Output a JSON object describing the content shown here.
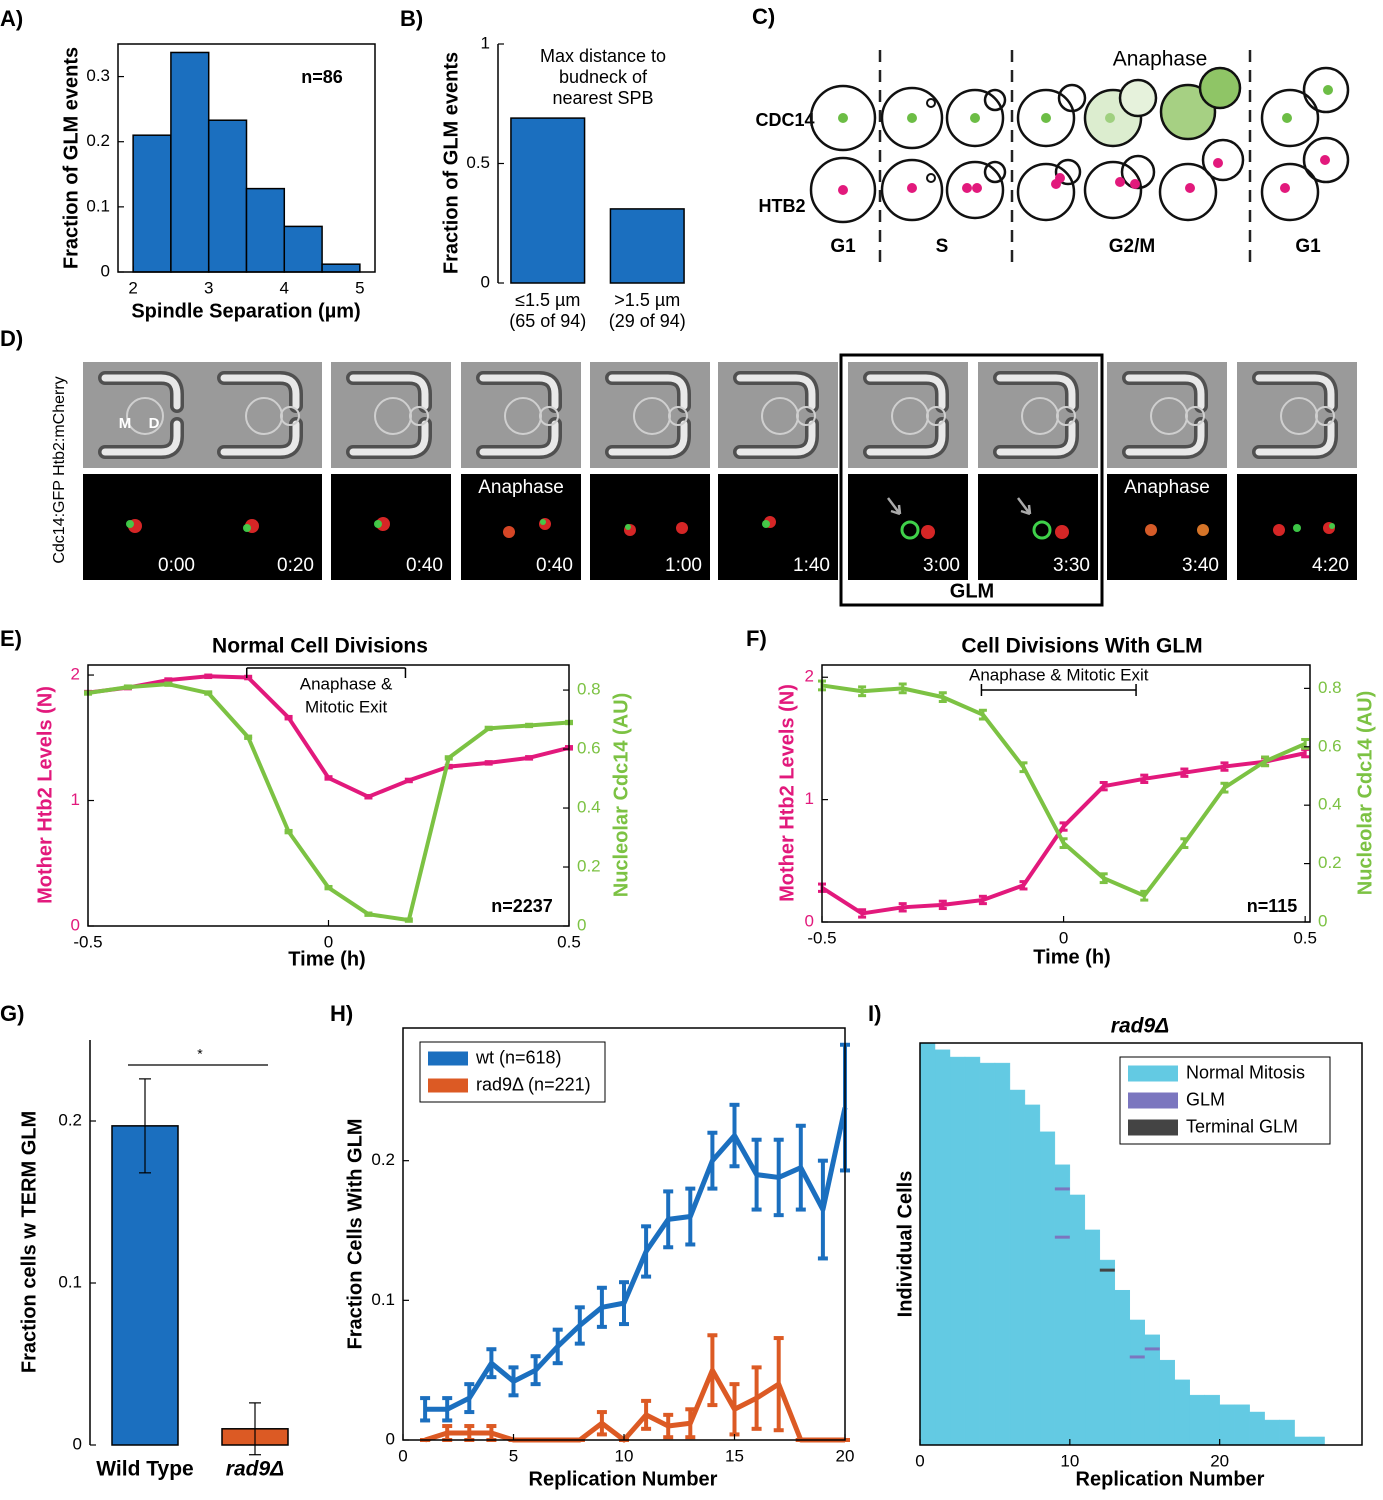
{
  "chart_data": [
    {
      "type": "histogram",
      "panel_label": "A)",
      "xlabel": "Spindle Separation (µm)",
      "ylabel": "Fraction of GLM events",
      "annotation": "n=86",
      "bins": [
        2,
        2.5,
        3,
        3.5,
        4,
        4.5,
        5
      ],
      "values": [
        0.21,
        0.337,
        0.233,
        0.128,
        0.07,
        0.012
      ],
      "color": "#1b6fbf",
      "xlim": [
        1.8,
        5.2
      ],
      "xticks": [
        2,
        3,
        4,
        5
      ],
      "ylim": [
        0,
        0.35
      ],
      "yticks": [
        0,
        0.1,
        0.2,
        0.3
      ]
    },
    {
      "type": "bar",
      "panel_label": "B)",
      "ylabel": "Fraction of GLM events",
      "annotation": [
        "Max distance to",
        "budneck of",
        "nearest SPB"
      ],
      "categories": [
        "≤1.5 µm",
        ">1.5 µm"
      ],
      "category_notes": [
        "(65 of 94)",
        "(29 of 94)"
      ],
      "values": [
        0.69,
        0.31
      ],
      "color": "#1b6fbf",
      "ylim": [
        0,
        1
      ],
      "yticks": [
        0,
        0.5,
        1
      ]
    },
    {
      "type": "line",
      "panel_label": "E)",
      "title": "Normal Cell Divisions",
      "xlabel": "Time (h)",
      "ylabel": "Mother Htb2 Levels (N)",
      "y2label": "Nucleolar Cdc14 (AU)",
      "annotation": "n=2237",
      "bracket": {
        "text": [
          "Anaphase &",
          "Mitotic Exit"
        ],
        "range": [
          -0.17,
          0.16
        ]
      },
      "x": [
        -0.5,
        -0.417,
        -0.333,
        -0.25,
        -0.167,
        -0.083,
        0,
        0.083,
        0.167,
        0.25,
        0.333,
        0.417,
        0.5
      ],
      "series": [
        {
          "color": "#e2197c",
          "values": [
            1.86,
            1.9,
            1.96,
            1.99,
            1.98,
            1.66,
            1.18,
            1.03,
            1.16,
            1.27,
            1.3,
            1.34,
            1.42
          ],
          "errors": [
            0.01,
            0.01,
            0.01,
            0.01,
            0.01,
            0.01,
            0.01,
            0.01,
            0.01,
            0.01,
            0.01,
            0.01,
            0.01
          ]
        },
        {
          "color": "#7cc243",
          "axis": "y2",
          "values": [
            0.79,
            0.81,
            0.82,
            0.79,
            0.64,
            0.32,
            0.13,
            0.04,
            0.02,
            0.57,
            0.67,
            0.68,
            0.69
          ],
          "errors": [
            0.004,
            0.004,
            0.004,
            0.004,
            0.004,
            0.004,
            0.004,
            0.004,
            0.004,
            0.004,
            0.004,
            0.004,
            0.004
          ]
        }
      ],
      "xlim": [
        -0.5,
        0.5
      ],
      "xticks": [
        -0.5,
        0,
        0.5
      ],
      "ylim": [
        0,
        2.08
      ],
      "yticks": [
        0,
        1,
        2
      ],
      "y2lim": [
        0,
        0.885
      ],
      "y2ticks": [
        0,
        0.2,
        0.4,
        0.6,
        0.8
      ]
    },
    {
      "type": "line",
      "panel_label": "F)",
      "title": "Cell Divisions With GLM",
      "xlabel": "Time (h)",
      "ylabel": "Mother Htb2 Levels (N)",
      "y2label": "Nucleolar Cdc14 (AU)",
      "annotation": "n=115",
      "bracket": {
        "text": "Anaphase & Mitotic Exit",
        "range": [
          -0.17,
          0.15
        ]
      },
      "x": [
        -0.5,
        -0.417,
        -0.333,
        -0.25,
        -0.167,
        -0.083,
        0,
        0.083,
        0.167,
        0.25,
        0.333,
        0.417,
        0.5
      ],
      "series": [
        {
          "color": "#e2197c",
          "values": [
            0.28,
            0.07,
            0.12,
            0.14,
            0.18,
            0.3,
            0.78,
            1.11,
            1.17,
            1.22,
            1.27,
            1.31,
            1.38
          ],
          "errors": [
            0.03,
            0.03,
            0.03,
            0.03,
            0.03,
            0.03,
            0.03,
            0.03,
            0.03,
            0.03,
            0.03,
            0.03,
            0.03
          ]
        },
        {
          "color": "#7cc243",
          "axis": "y2",
          "values": [
            0.81,
            0.79,
            0.8,
            0.77,
            0.71,
            0.53,
            0.27,
            0.15,
            0.09,
            0.27,
            0.46,
            0.55,
            0.61
          ],
          "errors": [
            0.015,
            0.015,
            0.015,
            0.015,
            0.015,
            0.015,
            0.015,
            0.015,
            0.015,
            0.015,
            0.015,
            0.015,
            0.015
          ]
        }
      ],
      "xlim": [
        -0.5,
        0.51
      ],
      "xticks": [
        -0.5,
        0,
        0.5
      ],
      "ylim": [
        0,
        2.1
      ],
      "yticks": [
        0,
        1,
        2
      ],
      "y2lim": [
        0,
        0.88
      ],
      "y2ticks": [
        0,
        0.2,
        0.4,
        0.6,
        0.8
      ]
    },
    {
      "type": "bar",
      "panel_label": "G)",
      "ylabel": "Fraction cells w TERM GLM",
      "categories": [
        "Wild Type",
        "rad9Δ"
      ],
      "values": [
        0.197,
        0.01
      ],
      "errors": [
        0.029,
        0.016
      ],
      "colors": [
        "#1b6fbf",
        "#dc5a24"
      ],
      "ylim": [
        0,
        0.25
      ],
      "yticks": [
        0,
        0.1,
        0.2
      ],
      "significance": "*"
    },
    {
      "type": "line",
      "panel_label": "H)",
      "xlabel": "Replication Number",
      "ylabel": "Fraction Cells With GLM",
      "x": [
        1,
        2,
        3,
        4,
        5,
        6,
        7,
        8,
        9,
        10,
        11,
        12,
        13,
        14,
        15,
        16,
        17,
        18,
        19,
        20
      ],
      "series": [
        {
          "name": "wt (n=618)",
          "color": "#1b6fbf",
          "values": [
            0.022,
            0.022,
            0.03,
            0.055,
            0.042,
            0.05,
            0.067,
            0.082,
            0.095,
            0.098,
            0.135,
            0.158,
            0.16,
            0.2,
            0.218,
            0.19,
            0.188,
            0.195,
            0.165,
            0.238
          ],
          "errors": [
            0.008,
            0.008,
            0.01,
            0.01,
            0.01,
            0.01,
            0.012,
            0.013,
            0.014,
            0.015,
            0.018,
            0.02,
            0.02,
            0.02,
            0.022,
            0.025,
            0.027,
            0.03,
            0.035,
            0.045
          ]
        },
        {
          "name": "rad9Δ (n=221)",
          "color": "#dc5a24",
          "values": [
            0,
            0.005,
            0.005,
            0.005,
            0,
            0,
            0,
            0,
            0.012,
            0,
            0.018,
            0.01,
            0.012,
            0.05,
            0.022,
            0.03,
            0.04,
            0,
            0,
            0
          ],
          "errors": [
            0,
            0.005,
            0.005,
            0.005,
            0,
            0,
            0,
            0,
            0.008,
            0,
            0.01,
            0.008,
            0.01,
            0.025,
            0.018,
            0.022,
            0.033,
            0,
            0,
            0
          ]
        }
      ],
      "xlim": [
        0,
        20
      ],
      "xticks": [
        0,
        5,
        10,
        15,
        20
      ],
      "ylim": [
        0,
        0.295
      ],
      "yticks": [
        0,
        0.1,
        0.2
      ],
      "legend": "upper left"
    },
    {
      "type": "histogram",
      "panel_label": "I)",
      "title": "rad9Δ",
      "xlabel": "Replication Number",
      "ylabel": "Individual Cells",
      "name": "Normal Mitosis",
      "bins": [
        0,
        1,
        2,
        3,
        4,
        5,
        6,
        7,
        8,
        9,
        10,
        11,
        12,
        13,
        14,
        15,
        16,
        17,
        18,
        19,
        20,
        21,
        22,
        23,
        24,
        25,
        26,
        27
      ],
      "values": [
        1.0,
        0.983,
        0.965,
        0.965,
        0.95,
        0.95,
        0.883,
        0.846,
        0.779,
        0.697,
        0.622,
        0.535,
        0.46,
        0.385,
        0.311,
        0.274,
        0.211,
        0.162,
        0.124,
        0.124,
        0.1,
        0.1,
        0.082,
        0.062,
        0.062,
        0.02,
        0.02
      ],
      "color": "#63cae3",
      "events": [
        {
          "name": "GLM",
          "color": "#7b76bf",
          "x": [
            9,
            9,
            14,
            15
          ],
          "y": [
            0.637,
            0.517,
            0.219,
            0.239
          ]
        },
        {
          "name": "Terminal GLM",
          "color": "#444444",
          "x": [
            12
          ],
          "y": [
            0.435
          ]
        }
      ],
      "xlim": [
        0,
        29.5
      ],
      "xticks": [
        0,
        10,
        20
      ],
      "ylim": [
        0,
        1
      ],
      "legend": "upper right"
    }
  ],
  "diagram": {
    "panel_label": "C)",
    "annotation": "Anaphase",
    "rows": [
      "CDC14",
      "HTB2"
    ],
    "phases": [
      "G1",
      "S",
      "G2/M",
      "G1"
    ]
  },
  "micrographs": {
    "panel_label": "D)",
    "ylabel": "Cdc14:GFP Htb2:mCherry",
    "cell_labels": [
      "M",
      "D"
    ],
    "times": [
      "0:00",
      "0:20",
      "0:40",
      "0:40",
      "1:00",
      "1:40",
      "3:00",
      "3:30",
      "3:40",
      "4:20"
    ],
    "frame_labels": [
      null,
      null,
      null,
      "Anaphase",
      null,
      null,
      null,
      null,
      "Anaphase",
      null
    ],
    "highlight": "GLM"
  }
}
